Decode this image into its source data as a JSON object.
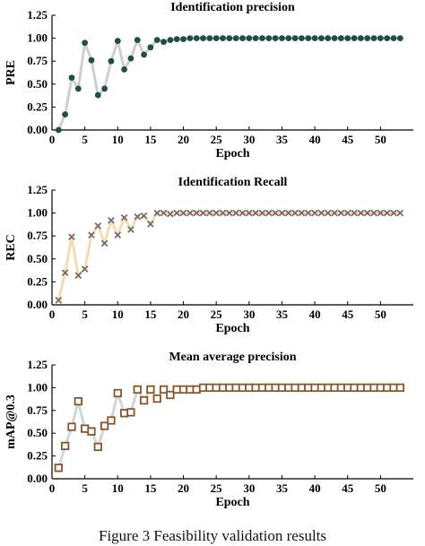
{
  "caption": "Figure 3 Feasibility validation results",
  "chart_data": [
    {
      "type": "line",
      "title": "Identification precision",
      "xlabel": "Epoch",
      "ylabel": "PRE",
      "xlim": [
        0,
        55
      ],
      "ylim": [
        0,
        1.25
      ],
      "xticks": [
        0,
        5,
        10,
        15,
        20,
        25,
        30,
        35,
        40,
        45,
        50
      ],
      "yticks": [
        0.0,
        0.25,
        0.5,
        0.75,
        1.0,
        1.25
      ],
      "marker": "circle",
      "line_color": "#cfcfcf",
      "marker_color": "#1f4e4a",
      "x": [
        1,
        2,
        3,
        4,
        5,
        6,
        7,
        8,
        9,
        10,
        11,
        12,
        13,
        14,
        15,
        16,
        17,
        18,
        19,
        20,
        21,
        22,
        23,
        24,
        25,
        26,
        27,
        28,
        29,
        30,
        31,
        32,
        33,
        34,
        35,
        36,
        37,
        38,
        39,
        40,
        41,
        42,
        43,
        44,
        45,
        46,
        47,
        48,
        49,
        50,
        51,
        52,
        53
      ],
      "y": [
        0.0,
        0.17,
        0.57,
        0.45,
        0.95,
        0.76,
        0.38,
        0.45,
        0.75,
        0.97,
        0.66,
        0.78,
        0.98,
        0.82,
        0.9,
        0.98,
        0.96,
        0.98,
        0.99,
        0.99,
        1.0,
        1.0,
        1.0,
        1.0,
        1.0,
        1.0,
        1.0,
        1.0,
        1.0,
        1.0,
        1.0,
        1.0,
        1.0,
        1.0,
        1.0,
        1.0,
        1.0,
        1.0,
        1.0,
        1.0,
        1.0,
        1.0,
        1.0,
        1.0,
        1.0,
        1.0,
        1.0,
        1.0,
        1.0,
        1.0,
        1.0,
        1.0,
        1.0
      ]
    },
    {
      "type": "line",
      "title": "Identification Recall",
      "xlabel": "Epoch",
      "ylabel": "REC",
      "xlim": [
        0,
        55
      ],
      "ylim": [
        0,
        1.25
      ],
      "xticks": [
        0,
        5,
        10,
        15,
        20,
        25,
        30,
        35,
        40,
        45,
        50
      ],
      "yticks": [
        0.0,
        0.25,
        0.5,
        0.75,
        1.0,
        1.25
      ],
      "marker": "x",
      "line_color": "#f2ddb0",
      "marker_color": "#7a6a6a",
      "x": [
        1,
        2,
        3,
        4,
        5,
        6,
        7,
        8,
        9,
        10,
        11,
        12,
        13,
        14,
        15,
        16,
        17,
        18,
        19,
        20,
        21,
        22,
        23,
        24,
        25,
        26,
        27,
        28,
        29,
        30,
        31,
        32,
        33,
        34,
        35,
        36,
        37,
        38,
        39,
        40,
        41,
        42,
        43,
        44,
        45,
        46,
        47,
        48,
        49,
        50,
        51,
        52,
        53
      ],
      "y": [
        0.05,
        0.35,
        0.74,
        0.32,
        0.39,
        0.76,
        0.86,
        0.67,
        0.92,
        0.76,
        0.95,
        0.82,
        0.96,
        0.97,
        0.88,
        1.0,
        1.0,
        0.99,
        1.0,
        1.0,
        1.0,
        1.0,
        1.0,
        1.0,
        1.0,
        1.0,
        1.0,
        1.0,
        1.0,
        1.0,
        1.0,
        1.0,
        1.0,
        1.0,
        1.0,
        1.0,
        1.0,
        1.0,
        1.0,
        1.0,
        1.0,
        1.0,
        1.0,
        1.0,
        1.0,
        1.0,
        1.0,
        1.0,
        1.0,
        1.0,
        1.0,
        1.0,
        1.0
      ]
    },
    {
      "type": "line",
      "title": "Mean average precision",
      "xlabel": "Epoch",
      "ylabel": "mAP@0.3",
      "xlim": [
        0,
        55
      ],
      "ylim": [
        0,
        1.25
      ],
      "xticks": [
        0,
        5,
        10,
        15,
        20,
        25,
        30,
        35,
        40,
        45,
        50
      ],
      "yticks": [
        0.0,
        0.25,
        0.5,
        0.75,
        1.0,
        1.25
      ],
      "marker": "square",
      "line_color": "#cdd8d8",
      "marker_color": "#8a5527",
      "x": [
        1,
        2,
        3,
        4,
        5,
        6,
        7,
        8,
        9,
        10,
        11,
        12,
        13,
        14,
        15,
        16,
        17,
        18,
        19,
        20,
        21,
        22,
        23,
        24,
        25,
        26,
        27,
        28,
        29,
        30,
        31,
        32,
        33,
        34,
        35,
        36,
        37,
        38,
        39,
        40,
        41,
        42,
        43,
        44,
        45,
        46,
        47,
        48,
        49,
        50,
        51,
        52,
        53
      ],
      "y": [
        0.12,
        0.36,
        0.57,
        0.85,
        0.55,
        0.52,
        0.35,
        0.58,
        0.64,
        0.94,
        0.72,
        0.73,
        0.98,
        0.86,
        0.98,
        0.88,
        0.98,
        0.92,
        0.98,
        0.98,
        0.98,
        0.98,
        1.0,
        1.0,
        1.0,
        1.0,
        1.0,
        1.0,
        1.0,
        1.0,
        1.0,
        1.0,
        1.0,
        1.0,
        1.0,
        1.0,
        1.0,
        1.0,
        1.0,
        1.0,
        1.0,
        1.0,
        1.0,
        1.0,
        1.0,
        1.0,
        1.0,
        1.0,
        1.0,
        1.0,
        1.0,
        1.0,
        1.0
      ]
    }
  ]
}
